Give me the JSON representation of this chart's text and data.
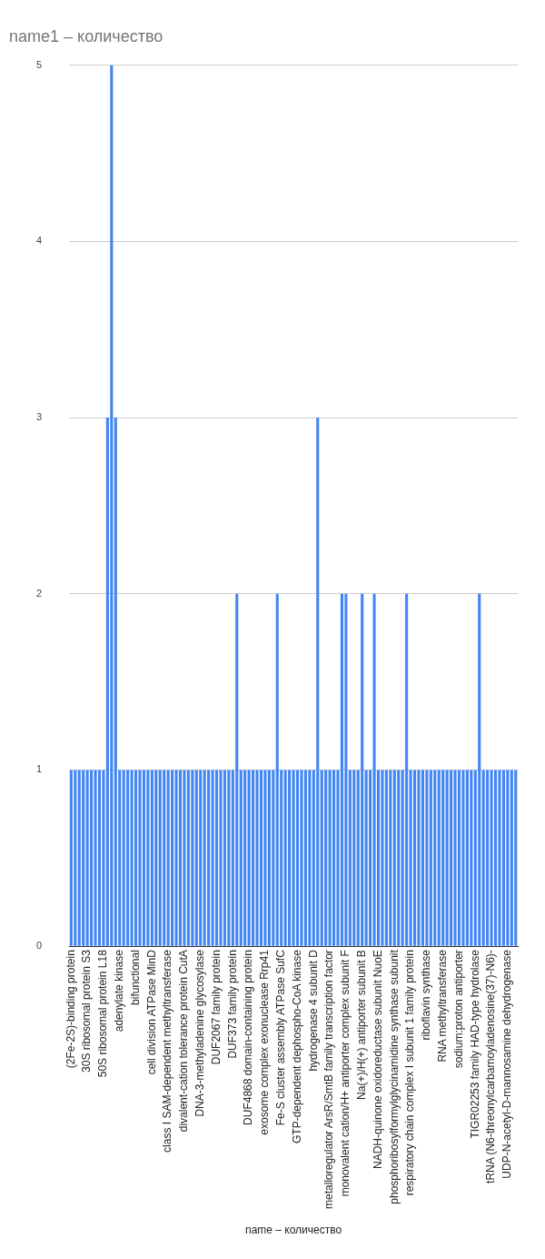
{
  "chart_data": {
    "type": "bar",
    "title": "name1 – количество",
    "xlabel": "name – количество",
    "categories": [
      "(2Fe-2S)-binding protein",
      null,
      null,
      null,
      "30S ribosomal protein S3",
      null,
      null,
      null,
      "50S ribosomal protein L18",
      null,
      null,
      null,
      "adenylate kinase",
      null,
      null,
      null,
      "bifunctional",
      null,
      null,
      null,
      "cell division ATPase MinD",
      null,
      null,
      null,
      "class I SAM-dependent methyltransferase",
      null,
      null,
      null,
      "divalent-cation tolerance protein CutA",
      null,
      null,
      null,
      "DNA-3-methyladenine glycosylase",
      null,
      null,
      null,
      "DUF2067 family protein",
      null,
      null,
      null,
      "DUF373 family protein",
      null,
      null,
      null,
      "DUF4868 domain-containing protein",
      null,
      null,
      null,
      "exosome complex exonuclease Rrp41",
      null,
      null,
      null,
      "Fe-S cluster assembly ATPase SufC",
      null,
      null,
      null,
      "GTP-dependent dephospho-CoA kinase",
      null,
      null,
      null,
      "hydrogenase 4 subunit D",
      null,
      null,
      null,
      "metalloregulator ArsR/SmtB family transcription factor",
      null,
      null,
      null,
      "monovalent cation/H+ antiporter complex subunit F",
      null,
      null,
      null,
      "Na(+)/H(+) antiporter subunit B",
      null,
      null,
      null,
      "NADH-quinone oxidoreductase subunit NuoE",
      null,
      null,
      null,
      "phosphoribosylformylglycinamidine synthase subunit",
      null,
      null,
      null,
      "respiratory chain complex I subunit 1 family protein",
      null,
      null,
      null,
      "riboflavin synthase",
      null,
      null,
      null,
      "RNA methyltransferase",
      null,
      null,
      null,
      "sodium:proton antiporter",
      null,
      null,
      null,
      "TIGR02253 family HAD-type hydrolase",
      null,
      null,
      null,
      "tRNA (N6-threonylcarbamoyladenosine(37)-N6)-",
      null,
      null,
      null,
      "UDP-N-acetyl-D-mannosamine dehydrogenase",
      null,
      null
    ],
    "values": [
      1,
      1,
      1,
      1,
      1,
      1,
      1,
      1,
      1,
      3,
      5,
      3,
      1,
      1,
      1,
      1,
      1,
      1,
      1,
      1,
      1,
      1,
      1,
      1,
      1,
      1,
      1,
      1,
      1,
      1,
      1,
      1,
      1,
      1,
      1,
      1,
      1,
      1,
      1,
      1,
      1,
      2,
      1,
      1,
      1,
      1,
      1,
      1,
      1,
      1,
      1,
      2,
      1,
      1,
      1,
      1,
      1,
      1,
      1,
      1,
      1,
      3,
      1,
      1,
      1,
      1,
      1,
      2,
      2,
      1,
      1,
      1,
      2,
      1,
      1,
      2,
      1,
      1,
      1,
      1,
      1,
      1,
      1,
      2,
      1,
      1,
      1,
      1,
      1,
      1,
      1,
      1,
      1,
      1,
      1,
      1,
      1,
      1,
      1,
      1,
      1,
      2,
      1,
      1,
      1,
      1,
      1,
      1,
      1,
      1,
      1
    ],
    "color": "#4285f4",
    "ylim": [
      0,
      5
    ],
    "yticks": [
      0,
      1,
      2,
      3,
      4,
      5
    ],
    "grid": "y"
  }
}
